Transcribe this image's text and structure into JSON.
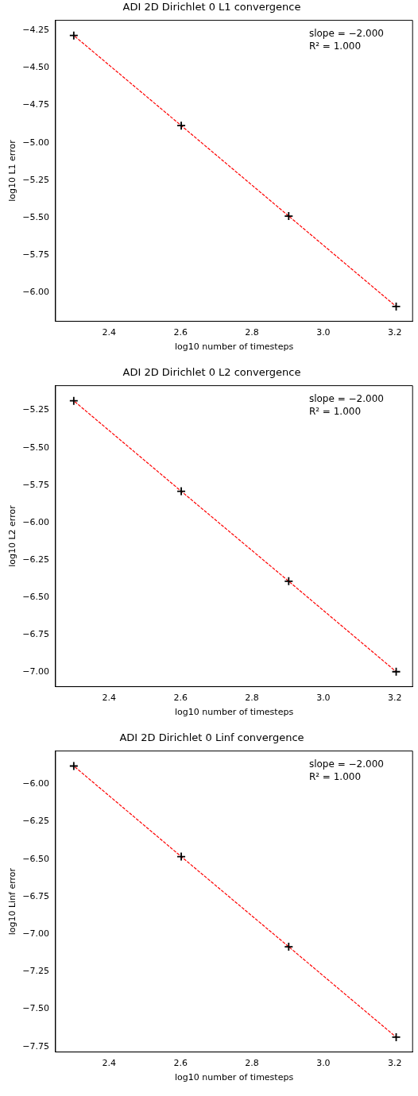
{
  "chart_data": [
    {
      "type": "scatter",
      "title": "ADI 2D Dirichlet 0 L1 convergence",
      "xlabel": "log10 number of timesteps",
      "ylabel": "log10 L1 error",
      "x": [
        2.301,
        2.602,
        2.903,
        3.204
      ],
      "series": [
        {
          "type": "scatter",
          "color": "#000000",
          "marker": "cross",
          "values": [
            -4.284,
            -4.886,
            -5.49,
            -6.094
          ]
        },
        {
          "type": "line",
          "color": "#ff0000",
          "line_style": "dashed",
          "marker": "none",
          "values": [
            -4.284,
            -4.886,
            -5.49,
            -6.094
          ]
        }
      ],
      "xlim": [
        2.25,
        3.25
      ],
      "xticks": [
        {
          "value": 2.4,
          "label": "2.4"
        },
        {
          "value": 2.6,
          "label": "2.6"
        },
        {
          "value": 2.8,
          "label": "2.8"
        },
        {
          "value": 3.0,
          "label": "3.0"
        },
        {
          "value": 3.2,
          "label": "3.2"
        }
      ],
      "ylim": [
        -6.193,
        -4.183
      ],
      "yticks": [
        {
          "value": -6.0,
          "label": "−6.00"
        },
        {
          "value": -5.75,
          "label": "−5.75"
        },
        {
          "value": -5.5,
          "label": "−5.50"
        },
        {
          "value": -5.25,
          "label": "−5.25"
        },
        {
          "value": -5.0,
          "label": "−5.00"
        },
        {
          "value": -4.75,
          "label": "−4.75"
        },
        {
          "value": -4.5,
          "label": "−4.50"
        },
        {
          "value": -4.25,
          "label": "−4.25"
        }
      ],
      "annotations": [
        "slope = −2.000",
        "R² = 1.000"
      ],
      "grid": false,
      "legend": false
    },
    {
      "type": "scatter",
      "title": "ADI 2D Dirichlet 0 L2 convergence",
      "xlabel": "log10 number of timesteps",
      "ylabel": "log10 L2 error",
      "x": [
        2.301,
        2.602,
        2.903,
        3.204
      ],
      "series": [
        {
          "type": "scatter",
          "color": "#000000",
          "marker": "cross",
          "values": [
            -5.187,
            -5.791,
            -6.392,
            -6.996
          ]
        },
        {
          "type": "line",
          "color": "#ff0000",
          "line_style": "dashed",
          "marker": "none",
          "values": [
            -5.187,
            -5.791,
            -6.392,
            -6.996
          ]
        }
      ],
      "xlim": [
        2.25,
        3.25
      ],
      "xticks": [
        {
          "value": 2.4,
          "label": "2.4"
        },
        {
          "value": 2.6,
          "label": "2.6"
        },
        {
          "value": 2.8,
          "label": "2.8"
        },
        {
          "value": 3.0,
          "label": "3.0"
        },
        {
          "value": 3.2,
          "label": "3.2"
        }
      ],
      "ylim": [
        -7.096,
        -5.086
      ],
      "yticks": [
        {
          "value": -7.0,
          "label": "−7.00"
        },
        {
          "value": -6.75,
          "label": "−6.75"
        },
        {
          "value": -6.5,
          "label": "−6.50"
        },
        {
          "value": -6.25,
          "label": "−6.25"
        },
        {
          "value": -6.0,
          "label": "−6.00"
        },
        {
          "value": -5.75,
          "label": "−5.75"
        },
        {
          "value": -5.5,
          "label": "−5.50"
        },
        {
          "value": -5.25,
          "label": "−5.25"
        }
      ],
      "annotations": [
        "slope = −2.000",
        "R² = 1.000"
      ],
      "grid": false,
      "legend": false
    },
    {
      "type": "scatter",
      "title": "ADI 2D Dirichlet 0 Linf convergence",
      "xlabel": "log10 number of timesteps",
      "ylabel": "log10 Linf error",
      "x": [
        2.301,
        2.602,
        2.903,
        3.204
      ],
      "series": [
        {
          "type": "scatter",
          "color": "#000000",
          "marker": "cross",
          "values": [
            -5.879,
            -6.483,
            -7.084,
            -7.687
          ]
        },
        {
          "type": "line",
          "color": "#ff0000",
          "line_style": "dashed",
          "marker": "none",
          "values": [
            -5.879,
            -6.483,
            -7.084,
            -7.687
          ]
        }
      ],
      "xlim": [
        2.25,
        3.25
      ],
      "xticks": [
        {
          "value": 2.4,
          "label": "2.4"
        },
        {
          "value": 2.6,
          "label": "2.6"
        },
        {
          "value": 2.8,
          "label": "2.8"
        },
        {
          "value": 3.0,
          "label": "3.0"
        },
        {
          "value": 3.2,
          "label": "3.2"
        }
      ],
      "ylim": [
        -7.786,
        -5.779
      ],
      "yticks": [
        {
          "value": -7.75,
          "label": "−7.75"
        },
        {
          "value": -7.5,
          "label": "−7.50"
        },
        {
          "value": -7.25,
          "label": "−7.25"
        },
        {
          "value": -7.0,
          "label": "−7.00"
        },
        {
          "value": -6.75,
          "label": "−6.75"
        },
        {
          "value": -6.5,
          "label": "−6.50"
        },
        {
          "value": -6.25,
          "label": "−6.25"
        },
        {
          "value": -6.0,
          "label": "−6.00"
        }
      ],
      "annotations": [
        "slope = −2.000",
        "R² = 1.000"
      ],
      "grid": false,
      "legend": false
    }
  ]
}
